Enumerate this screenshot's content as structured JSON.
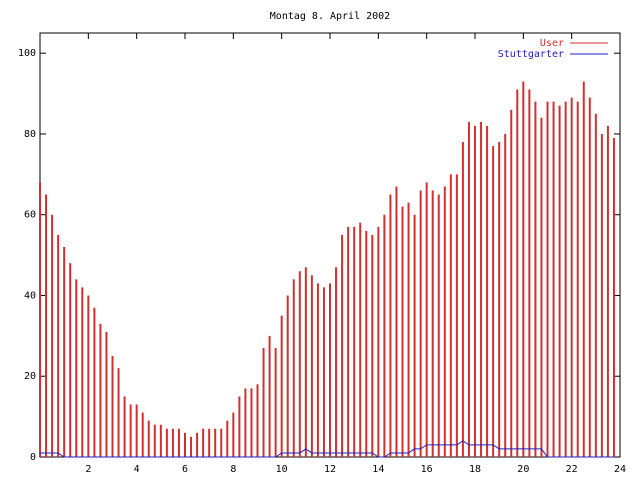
{
  "chart_data": {
    "type": "impulse",
    "title": "Montag 8. April 2002",
    "x": [
      0,
      0.25,
      0.5,
      0.75,
      1,
      1.25,
      1.5,
      1.75,
      2,
      2.25,
      2.5,
      2.75,
      3,
      3.25,
      3.5,
      3.75,
      4,
      4.25,
      4.5,
      4.75,
      5,
      5.25,
      5.5,
      5.75,
      6,
      6.25,
      6.5,
      6.75,
      7,
      7.25,
      7.5,
      7.75,
      8,
      8.25,
      8.5,
      8.75,
      9,
      9.25,
      9.5,
      9.75,
      10,
      10.25,
      10.5,
      10.75,
      11,
      11.25,
      11.5,
      11.75,
      12,
      12.25,
      12.5,
      12.75,
      13,
      13.25,
      13.5,
      13.75,
      14,
      14.25,
      14.5,
      14.75,
      15,
      15.25,
      15.5,
      15.75,
      16,
      16.25,
      16.5,
      16.75,
      17,
      17.25,
      17.5,
      17.75,
      18,
      18.25,
      18.5,
      18.75,
      19,
      19.25,
      19.5,
      19.75,
      20,
      20.25,
      20.5,
      20.75,
      21,
      21.25,
      21.5,
      21.75,
      22,
      22.25,
      22.5,
      22.75,
      23,
      23.25,
      23.5,
      23.75
    ],
    "series": [
      {
        "name": "User",
        "color": "#d03030",
        "style": "impulses",
        "values": [
          68,
          65,
          60,
          55,
          52,
          48,
          44,
          42,
          40,
          37,
          33,
          31,
          25,
          22,
          15,
          13,
          13,
          11,
          9,
          8,
          8,
          7,
          7,
          7,
          6,
          5,
          6,
          7,
          7,
          7,
          7,
          9,
          11,
          15,
          17,
          17,
          18,
          27,
          30,
          27,
          35,
          40,
          44,
          46,
          47,
          45,
          43,
          42,
          43,
          47,
          55,
          57,
          57,
          58,
          56,
          55,
          57,
          60,
          65,
          67,
          62,
          63,
          60,
          66,
          68,
          66,
          65,
          67,
          70,
          70,
          78,
          83,
          82,
          83,
          82,
          77,
          78,
          80,
          86,
          91,
          93,
          91,
          88,
          84,
          88,
          88,
          87,
          88,
          89,
          88,
          93,
          89,
          85,
          80,
          82,
          79
        ]
      },
      {
        "name": "Stuttgarter",
        "color": "#2020c0",
        "style": "lines",
        "values": [
          1,
          1,
          1,
          1,
          0,
          0,
          0,
          0,
          0,
          0,
          0,
          0,
          0,
          0,
          0,
          0,
          0,
          0,
          0,
          0,
          0,
          0,
          0,
          0,
          0,
          0,
          0,
          0,
          0,
          0,
          0,
          0,
          0,
          0,
          0,
          0,
          0,
          0,
          0,
          0,
          1,
          1,
          1,
          1,
          2,
          1,
          1,
          1,
          1,
          1,
          1,
          1,
          1,
          1,
          1,
          1,
          0,
          0,
          1,
          1,
          1,
          1,
          2,
          2,
          3,
          3,
          3,
          3,
          3,
          3,
          4,
          3,
          3,
          3,
          3,
          3,
          2,
          2,
          2,
          2,
          2,
          2,
          2,
          2,
          0,
          0,
          0,
          0,
          0,
          0,
          0,
          0,
          0,
          0,
          0,
          0
        ]
      }
    ],
    "xlim": [
      0,
      24
    ],
    "xticks": [
      2,
      4,
      6,
      8,
      10,
      12,
      14,
      16,
      18,
      20,
      22,
      24
    ],
    "ylim": [
      0,
      105
    ],
    "yticks": [
      0,
      20,
      40,
      60,
      80,
      100
    ],
    "legend": "upper right"
  }
}
